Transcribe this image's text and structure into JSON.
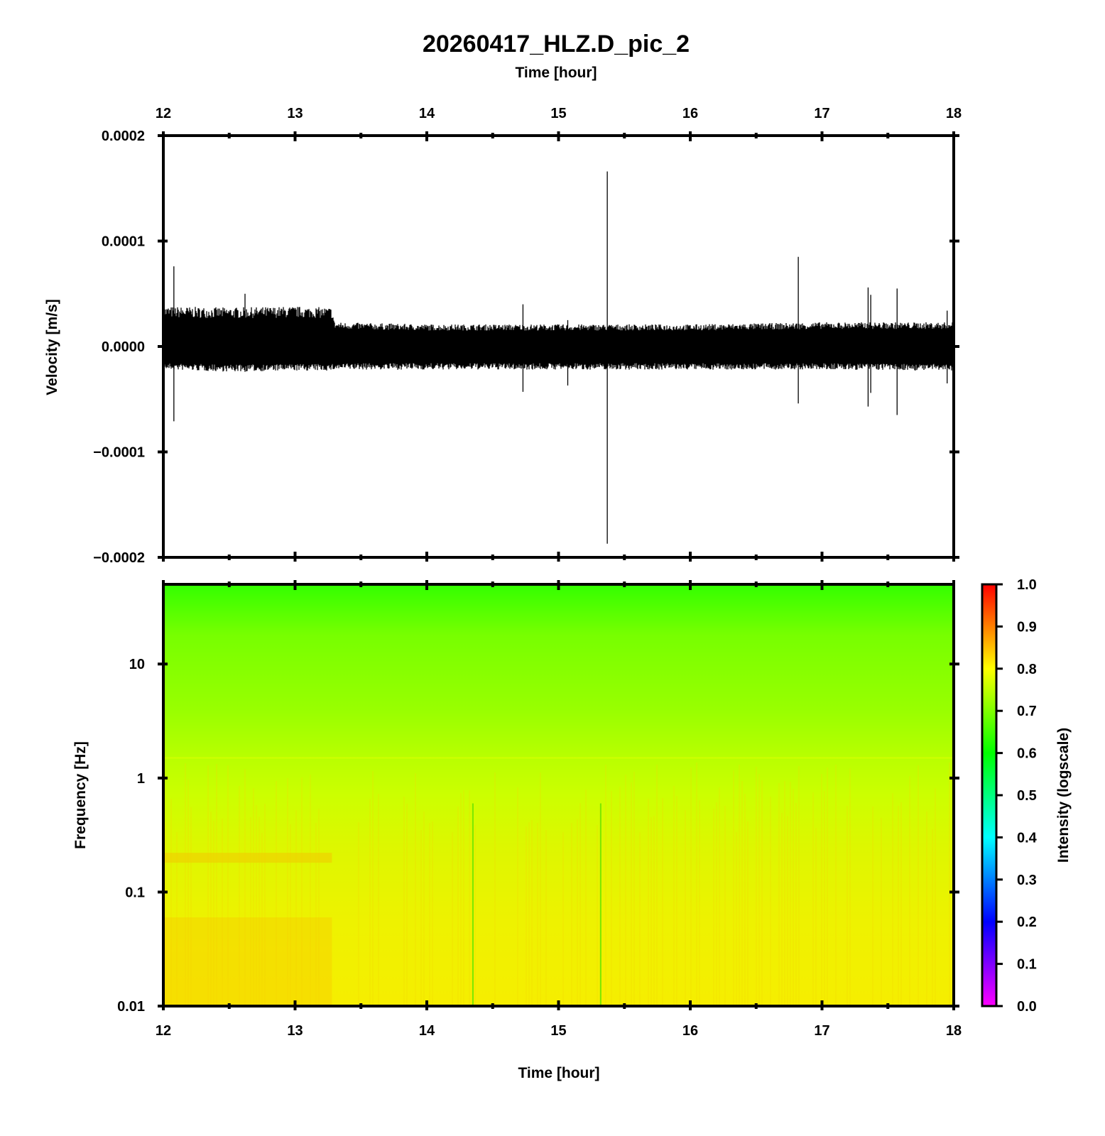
{
  "chart_data": [
    {
      "type": "line",
      "title": "20260417_HLZ.D_pic_2",
      "xlabel": "Time [hour]",
      "ylabel": "Velocity [m/s]",
      "xlim": [
        12,
        18
      ],
      "ylim": [
        -0.0002,
        0.0002
      ],
      "x_ticks": [
        "12",
        "13",
        "14",
        "15",
        "16",
        "17",
        "18"
      ],
      "y_ticks": [
        "0.0002",
        "0.0001",
        "0.0000",
        "−0.0001",
        "−0.0002"
      ],
      "series": [
        {
          "x": [
            12.0,
            12.5,
            13.0,
            13.28,
            13.3,
            14.0,
            15.0,
            16.0,
            17.0,
            18.0
          ],
          "upper_envelope": [
            3.8e-05,
            3.7e-05,
            3.8e-05,
            3.7e-05,
            2.3e-05,
            2.1e-05,
            2.1e-05,
            2.1e-05,
            2.3e-05,
            2.3e-05
          ],
          "lower_envelope": [
            -2.2e-05,
            -2.4e-05,
            -2.3e-05,
            -2.3e-05,
            -2.2e-05,
            -2.2e-05,
            -2.2e-05,
            -2.2e-05,
            -2.2e-05,
            -2.3e-05
          ]
        }
      ],
      "spikes": [
        {
          "x": 12.08,
          "max": 7.6e-05,
          "min": -7.1e-05
        },
        {
          "x": 12.62,
          "max": 5e-05,
          "min": -2.4e-05
        },
        {
          "x": 14.73,
          "max": 4e-05,
          "min": -4.3e-05
        },
        {
          "x": 15.07,
          "max": 2.5e-05,
          "min": -3.7e-05
        },
        {
          "x": 15.37,
          "max": 0.000166,
          "min": -0.000187
        },
        {
          "x": 16.82,
          "max": 8.5e-05,
          "min": -5.4e-05
        },
        {
          "x": 17.35,
          "max": 5.6e-05,
          "min": -5.7e-05
        },
        {
          "x": 17.37,
          "max": 4.9e-05,
          "min": -4.4e-05
        },
        {
          "x": 17.57,
          "max": 5.5e-05,
          "min": -6.5e-05
        },
        {
          "x": 17.95,
          "max": 3.4e-05,
          "min": -3.5e-05
        }
      ]
    },
    {
      "type": "heatmap",
      "xlabel": "Time [hour]",
      "ylabel": "Frequency [Hz]",
      "xlim": [
        12,
        18
      ],
      "ylim": [
        0.01,
        50
      ],
      "yscale": "log",
      "x_ticks": [
        "12",
        "13",
        "14",
        "15",
        "16",
        "17",
        "18"
      ],
      "y_ticks": [
        "10",
        "1",
        "0.1",
        "0.01"
      ],
      "colorbar": {
        "label": "Intensity (logscale)",
        "range": [
          0.0,
          1.0
        ],
        "ticks": [
          "1.0",
          "0.9",
          "0.8",
          "0.7",
          "0.6",
          "0.5",
          "0.4",
          "0.3",
          "0.2",
          "0.1",
          "0.0"
        ],
        "colormap": [
          "#ff00ff",
          "#0000ff",
          "#00ffff",
          "#00ff00",
          "#ffff00",
          "#ff0000"
        ]
      },
      "intensity_by_frequency": {
        "frequency_hz": [
          0.01,
          0.05,
          0.2,
          1,
          5,
          20,
          50
        ],
        "intensity": [
          0.8,
          0.78,
          0.77,
          0.74,
          0.7,
          0.66,
          0.62
        ]
      },
      "events": [
        {
          "x": 15.32,
          "intensity": 0.66
        },
        {
          "x": 14.35,
          "intensity": 0.72
        }
      ]
    }
  ]
}
